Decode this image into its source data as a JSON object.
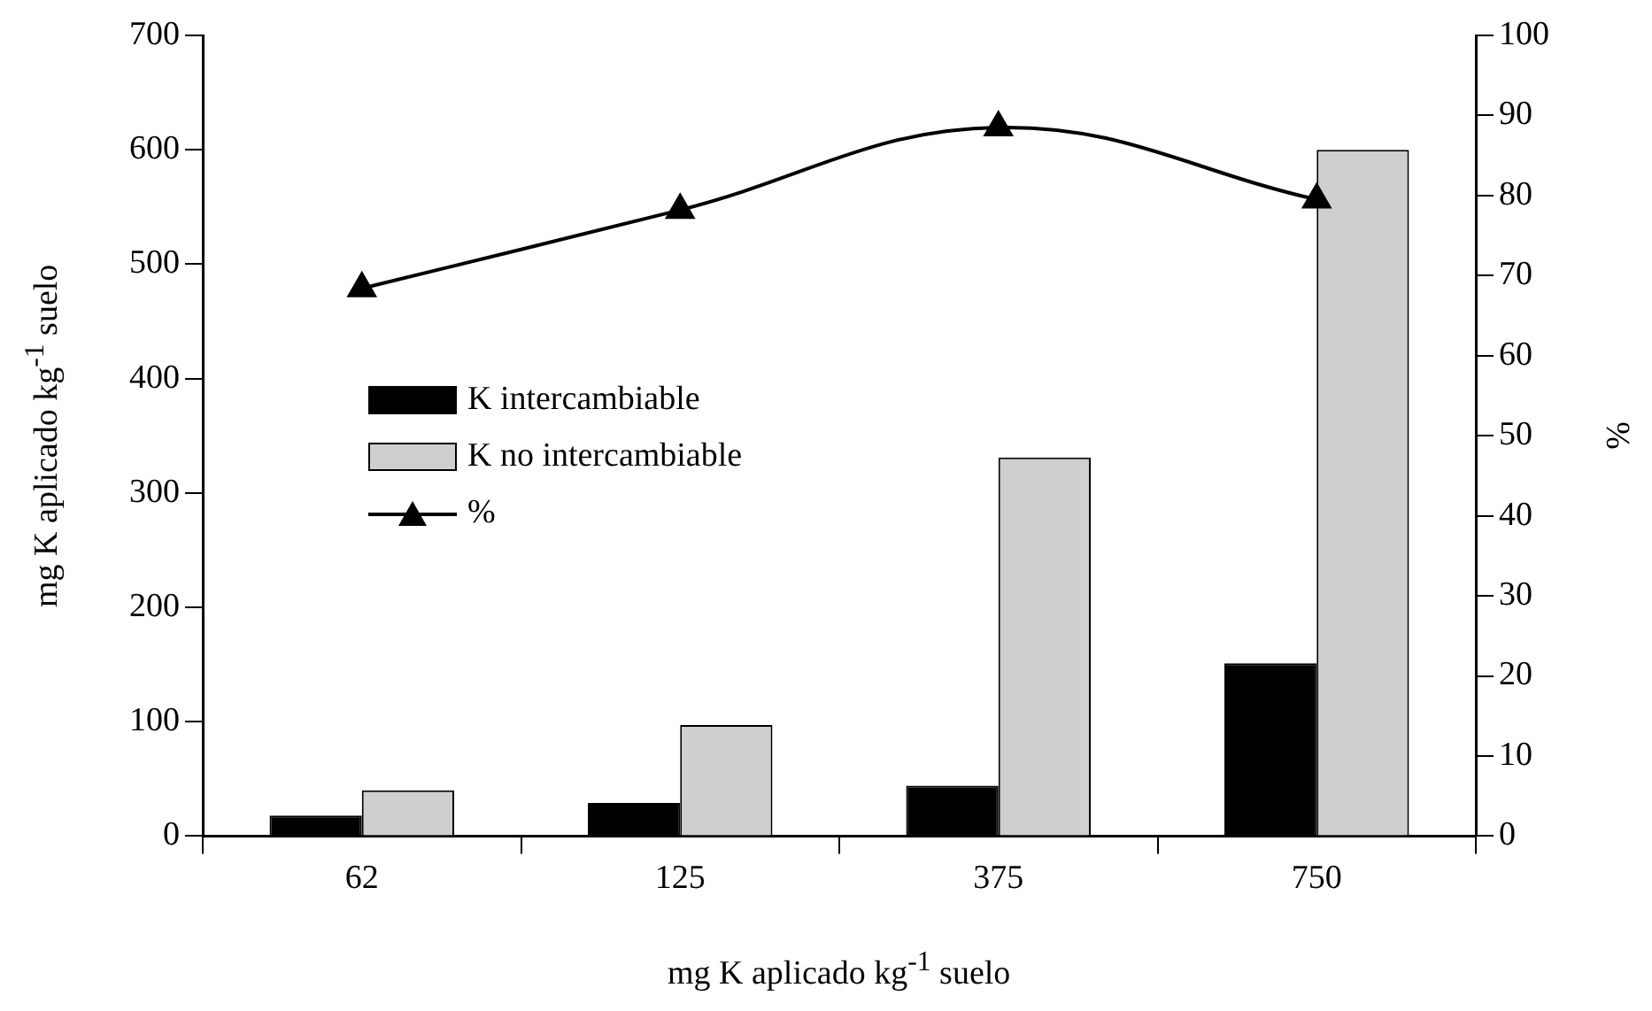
{
  "chart_data": {
    "type": "bar",
    "xlabel": "mg K aplicado kg$^{-1}$ suelo",
    "ylabel": "mg K aplicado kg$^{-1}$ suelo",
    "y2label": "%",
    "categories": [
      "62",
      "125",
      "375",
      "750"
    ],
    "series": [
      {
        "name": "K intercambiable",
        "color": "#000000",
        "values": [
          18,
          29,
          44,
          151
        ]
      },
      {
        "name": "K no intercambiable",
        "color": "#cfcfcf",
        "values": [
          40,
          97,
          331,
          600
        ]
      },
      {
        "name": "%",
        "type": "line",
        "axis": "y2",
        "color": "#000000",
        "marker": "triangle",
        "values": [
          68.4,
          78.2,
          88.5,
          79.5
        ]
      }
    ],
    "ylim": [
      0,
      700
    ],
    "yticks": [
      0,
      100,
      200,
      300,
      400,
      500,
      600,
      700
    ],
    "y2lim": [
      0,
      100
    ],
    "y2ticks": [
      0,
      10,
      20,
      30,
      40,
      50,
      60,
      70,
      80,
      90,
      100
    ],
    "grid": false,
    "legend": "left"
  }
}
